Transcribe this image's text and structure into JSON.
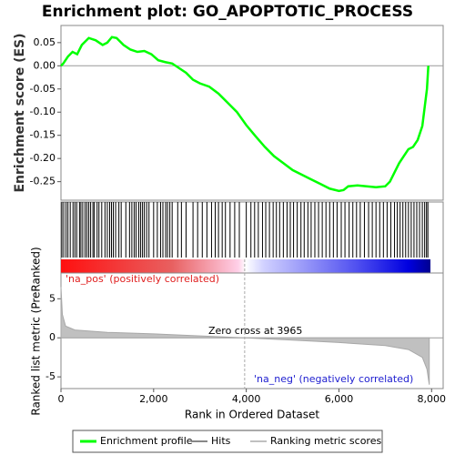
{
  "chart_data": [
    {
      "type": "line",
      "title": "Enrichment plot: GO_APOPTOTIC_PROCESS",
      "ylabel": "Enrichment score (ES)",
      "xlim": [
        0,
        8250
      ],
      "ylim": [
        -0.29,
        0.087
      ],
      "yticks": [
        0.05,
        {
          "value": 0,
          "label": "0.00"
        },
        -0.05,
        {
          "value": -0.1,
          "label": "-0.10"
        },
        -0.15,
        {
          "value": -0.2,
          "label": "-0.20"
        },
        -0.25
      ],
      "series": [
        {
          "name": "Enrichment profile",
          "color": "#00ff00",
          "x": [
            0,
            50,
            150,
            250,
            350,
            450,
            600,
            750,
            900,
            1000,
            1100,
            1200,
            1350,
            1500,
            1650,
            1800,
            1950,
            2100,
            2250,
            2400,
            2550,
            2700,
            2850,
            3000,
            3200,
            3400,
            3600,
            3800,
            4000,
            4200,
            4400,
            4600,
            4800,
            5000,
            5200,
            5400,
            5600,
            5800,
            6000,
            6100,
            6200,
            6400,
            6600,
            6800,
            7000,
            7100,
            7200,
            7300,
            7400,
            7500,
            7600,
            7700,
            7800,
            7850,
            7900,
            7930
          ],
          "values": [
            0.0,
            0.005,
            0.02,
            0.03,
            0.025,
            0.045,
            0.06,
            0.055,
            0.045,
            0.05,
            0.062,
            0.06,
            0.045,
            0.035,
            0.03,
            0.032,
            0.025,
            0.012,
            0.008,
            0.005,
            -0.005,
            -0.015,
            -0.03,
            -0.038,
            -0.045,
            -0.06,
            -0.08,
            -0.1,
            -0.128,
            -0.152,
            -0.175,
            -0.195,
            -0.21,
            -0.225,
            -0.235,
            -0.245,
            -0.255,
            -0.265,
            -0.27,
            -0.268,
            -0.26,
            -0.258,
            -0.26,
            -0.262,
            -0.26,
            -0.25,
            -0.23,
            -0.21,
            -0.195,
            -0.18,
            -0.175,
            -0.16,
            -0.13,
            -0.09,
            -0.05,
            0.0
          ]
        }
      ]
    },
    {
      "type": "hits",
      "xlim": [
        0,
        8250
      ],
      "series": [
        {
          "name": "Hits",
          "color": "#000000",
          "x": [
            20,
            60,
            110,
            150,
            200,
            260,
            300,
            340,
            400,
            430,
            470,
            520,
            560,
            600,
            640,
            690,
            720,
            780,
            820,
            880,
            950,
            1000,
            1050,
            1090,
            1130,
            1180,
            1250,
            1300,
            1400,
            1480,
            1530,
            1580,
            1620,
            1680,
            1720,
            1760,
            1800,
            1850,
            1900,
            2000,
            2080,
            2150,
            2200,
            2260,
            2300,
            2350,
            2400,
            2520,
            2600,
            2700,
            2850,
            2950,
            3050,
            3150,
            3250,
            3330,
            3400,
            3480,
            3550,
            3650,
            3750,
            3850,
            4000,
            4100,
            4180,
            4260,
            4350,
            4420,
            4500,
            4580,
            4650,
            4720,
            4800,
            4880,
            4950,
            5020,
            5100,
            5180,
            5250,
            5330,
            5400,
            5480,
            5560,
            5640,
            5720,
            5800,
            5880,
            5960,
            6050,
            6130,
            6220,
            6300,
            6380,
            6460,
            6550,
            6640,
            6720,
            6800,
            6880,
            6960,
            7040,
            7120,
            7200,
            7260,
            7320,
            7380,
            7440,
            7500,
            7560,
            7620,
            7680,
            7740,
            7800,
            7850,
            7890,
            7920
          ]
        }
      ]
    },
    {
      "type": "area",
      "ylabel": "Ranked list metric (PreRanked)",
      "xlabel": "Rank in Ordered Dataset",
      "xlim": [
        0,
        8250
      ],
      "ylim": [
        -6.5,
        8.3
      ],
      "yticks": [
        5,
        0,
        -5
      ],
      "xticks": [
        0,
        {
          "value": 2000,
          "label": "2,000"
        },
        {
          "value": 4000,
          "label": "4,000"
        },
        {
          "value": 6000,
          "label": "6,000"
        },
        {
          "value": 8000,
          "label": "8,000"
        }
      ],
      "zero_cross": 3965,
      "annotations": [
        "'na_pos' (positively correlated)",
        "Zero cross at 3965",
        "'na_neg' (negatively correlated)"
      ],
      "series": [
        {
          "name": "Ranking metric scores",
          "color": "#c0c0c0",
          "x": [
            0,
            30,
            100,
            300,
            1000,
            2000,
            3000,
            3965,
            5000,
            6000,
            7000,
            7500,
            7800,
            7900,
            7950
          ],
          "values": [
            6.5,
            3,
            1.5,
            1,
            0.7,
            0.5,
            0.25,
            0,
            -0.3,
            -0.6,
            -1,
            -1.5,
            -2.5,
            -4,
            -6
          ]
        }
      ]
    }
  ]
}
